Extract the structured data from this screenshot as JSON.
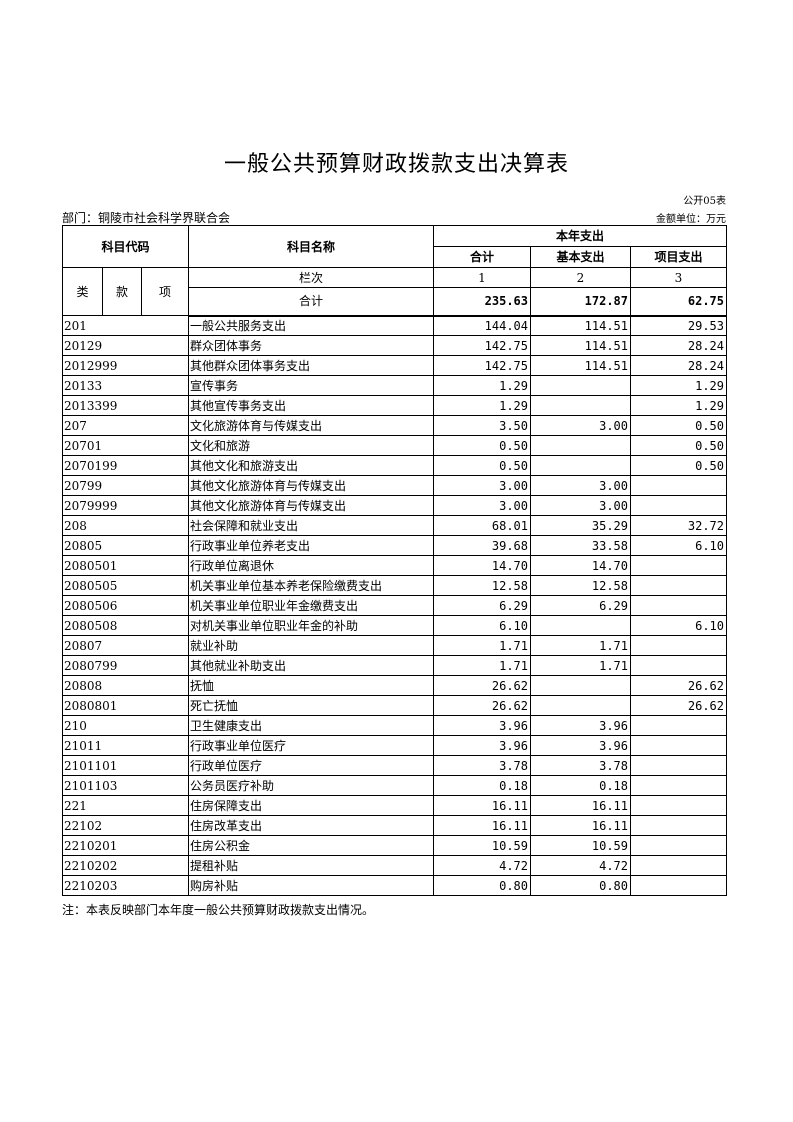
{
  "title": "一般公共预算财政拨款支出决算表",
  "form_no": "公开05表",
  "department": "部门：铜陵市社会科学界联合会",
  "unit": "金额单位：万元",
  "header": {
    "code": "科目代码",
    "name": "科目名称",
    "current_year": "本年支出",
    "total": "合计",
    "basic": "基本支出",
    "project": "项目支出",
    "lei": "类",
    "kuan": "款",
    "xiang": "项",
    "column_index_label": "栏次",
    "col1": "1",
    "col2": "2",
    "col3": "3",
    "sum_label": "合计"
  },
  "totals": {
    "total": "235.63",
    "basic": "172.87",
    "project": "62.75"
  },
  "rows": [
    [
      "201",
      "一般公共服务支出",
      "144.04",
      "114.51",
      "29.53"
    ],
    [
      "20129",
      "群众团体事务",
      "142.75",
      "114.51",
      "28.24"
    ],
    [
      "2012999",
      "其他群众团体事务支出",
      "142.75",
      "114.51",
      "28.24"
    ],
    [
      "20133",
      "宣传事务",
      "1.29",
      "",
      "1.29"
    ],
    [
      "2013399",
      "其他宣传事务支出",
      "1.29",
      "",
      "1.29"
    ],
    [
      "207",
      "文化旅游体育与传媒支出",
      "3.50",
      "3.00",
      "0.50"
    ],
    [
      "20701",
      "文化和旅游",
      "0.50",
      "",
      "0.50"
    ],
    [
      "2070199",
      "其他文化和旅游支出",
      "0.50",
      "",
      "0.50"
    ],
    [
      "20799",
      "其他文化旅游体育与传媒支出",
      "3.00",
      "3.00",
      ""
    ],
    [
      "2079999",
      "其他文化旅游体育与传媒支出",
      "3.00",
      "3.00",
      ""
    ],
    [
      "208",
      "社会保障和就业支出",
      "68.01",
      "35.29",
      "32.72"
    ],
    [
      "20805",
      "行政事业单位养老支出",
      "39.68",
      "33.58",
      "6.10"
    ],
    [
      "2080501",
      "行政单位离退休",
      "14.70",
      "14.70",
      ""
    ],
    [
      "2080505",
      "机关事业单位基本养老保险缴费支出",
      "12.58",
      "12.58",
      ""
    ],
    [
      "2080506",
      "机关事业单位职业年金缴费支出",
      "6.29",
      "6.29",
      ""
    ],
    [
      "2080508",
      "对机关事业单位职业年金的补助",
      "6.10",
      "",
      "6.10"
    ],
    [
      "20807",
      "就业补助",
      "1.71",
      "1.71",
      ""
    ],
    [
      "2080799",
      "其他就业补助支出",
      "1.71",
      "1.71",
      ""
    ],
    [
      "20808",
      "抚恤",
      "26.62",
      "",
      "26.62"
    ],
    [
      "2080801",
      "死亡抚恤",
      "26.62",
      "",
      "26.62"
    ],
    [
      "210",
      "卫生健康支出",
      "3.96",
      "3.96",
      ""
    ],
    [
      "21011",
      "行政事业单位医疗",
      "3.96",
      "3.96",
      ""
    ],
    [
      "2101101",
      "行政单位医疗",
      "3.78",
      "3.78",
      ""
    ],
    [
      "2101103",
      "公务员医疗补助",
      "0.18",
      "0.18",
      ""
    ],
    [
      "221",
      "住房保障支出",
      "16.11",
      "16.11",
      ""
    ],
    [
      "22102",
      "住房改革支出",
      "16.11",
      "16.11",
      ""
    ],
    [
      "2210201",
      "住房公积金",
      "10.59",
      "10.59",
      ""
    ],
    [
      "2210202",
      "提租补贴",
      "4.72",
      "4.72",
      ""
    ],
    [
      "2210203",
      "购房补贴",
      "0.80",
      "0.80",
      ""
    ]
  ],
  "note": "注：本表反映部门本年度一般公共预算财政拨款支出情况。"
}
